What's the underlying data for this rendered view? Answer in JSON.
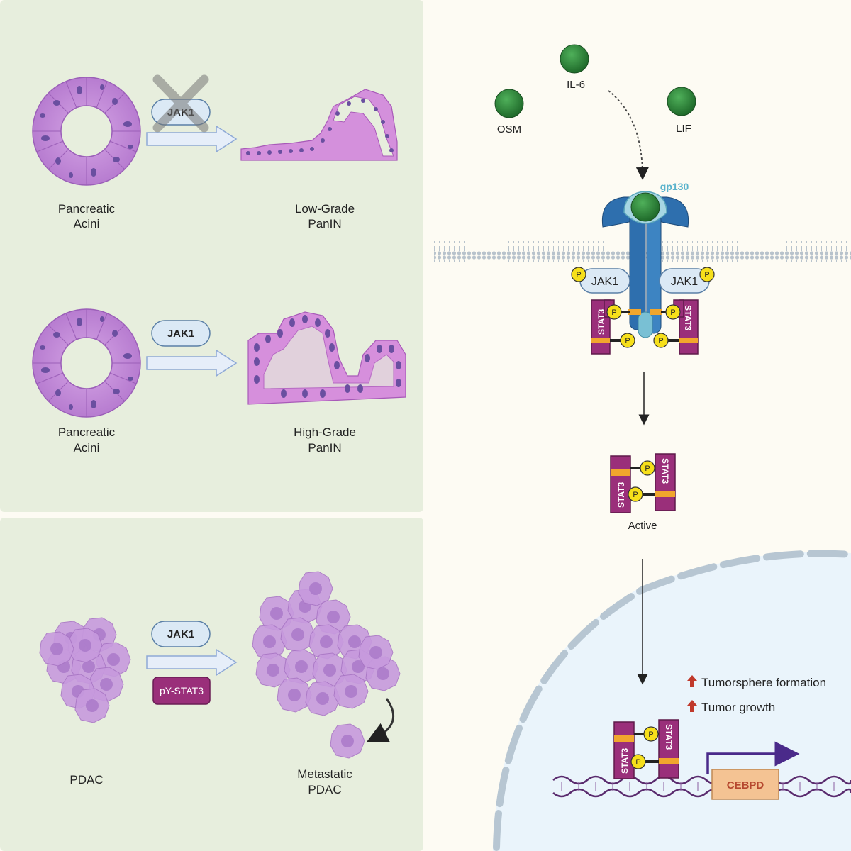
{
  "panel_a": {
    "row1": {
      "left_label_1": "Pancreatic",
      "left_label_2": "Acini",
      "enzyme": "JAK1",
      "right_label_1": "Low-Grade",
      "right_label_2": "PanIN"
    },
    "row2": {
      "left_label_1": "Pancreatic",
      "left_label_2": "Acini",
      "enzyme": "JAK1",
      "right_label_1": "High-Grade",
      "right_label_2": "PanIN"
    }
  },
  "panel_b": {
    "left_label": "PDAC",
    "enzyme": "JAK1",
    "phospho": "pY-STAT3",
    "right_label_1": "Metastatic",
    "right_label_2": "PDAC"
  },
  "pathway": {
    "ligands": {
      "il6": "IL-6",
      "osm": "OSM",
      "lif": "LIF"
    },
    "receptor": "gp130",
    "jak_left": "JAK1",
    "jak_right": "JAK1",
    "stat": "STAT3",
    "p": "P",
    "active_label": "Active",
    "outcome_1": "Tumorsphere formation",
    "outcome_2": "Tumor growth",
    "gene": "CEBPD"
  },
  "colors": {
    "panel_bg": "#e7eedd",
    "right_bg": "#fdfbf3",
    "nucleus": "#eaf4fb",
    "stat3": "#9a2f7a",
    "stat_band": "#f1a62d",
    "phospho": "#f6df1a",
    "jak_fill": "#dbe9f5",
    "receptor": "#2e6fae",
    "gp130": "#79c0d4",
    "ligand": "#2f8a3c",
    "acini": "#c988dd",
    "gene_box": "#f4c393",
    "arrow_up": "#c0392b"
  }
}
